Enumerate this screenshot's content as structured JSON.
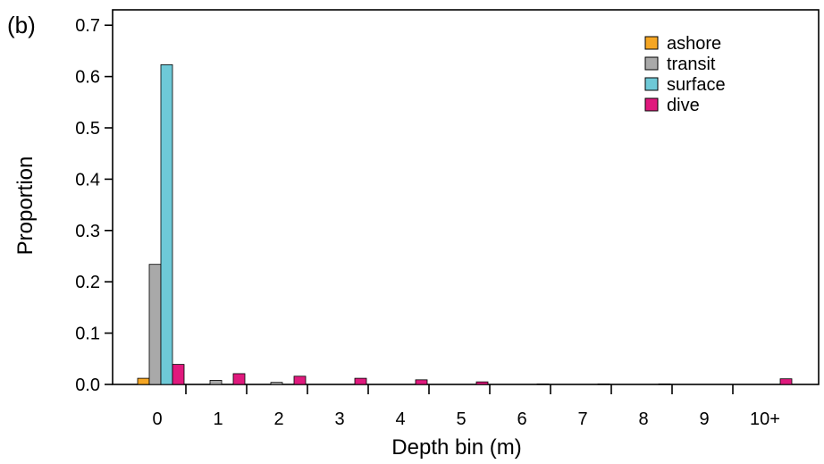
{
  "panel_label": "(b)",
  "chart_data": {
    "type": "bar",
    "title": "",
    "xlabel": "Depth bin (m)",
    "ylabel": "Proportion",
    "categories": [
      "0",
      "1",
      "2",
      "3",
      "4",
      "5",
      "6",
      "7",
      "8",
      "9",
      "10+"
    ],
    "ylim": [
      0,
      0.73
    ],
    "yticks": [
      "0.0",
      "0.1",
      "0.2",
      "0.3",
      "0.4",
      "0.5",
      "0.6",
      "0.7"
    ],
    "grid": false,
    "legend_position": "top-right",
    "series": [
      {
        "name": "ashore",
        "color": "#f5a623",
        "values": [
          0.012,
          0,
          0,
          0,
          0,
          0,
          0,
          0,
          0,
          0,
          0
        ]
      },
      {
        "name": "transit",
        "color": "#a9a9a9",
        "values": [
          0.234,
          0.008,
          0.004,
          0,
          0,
          0,
          0,
          0,
          0,
          0,
          0
        ]
      },
      {
        "name": "surface",
        "color": "#6ec9d7",
        "values": [
          0.623,
          0,
          0,
          0,
          0,
          0,
          0,
          0,
          0,
          0,
          0
        ]
      },
      {
        "name": "dive",
        "color": "#e0197d",
        "values": [
          0.039,
          0.021,
          0.016,
          0.012,
          0.009,
          0.005,
          0.001,
          0.001,
          0.001,
          0,
          0.011
        ]
      }
    ]
  }
}
